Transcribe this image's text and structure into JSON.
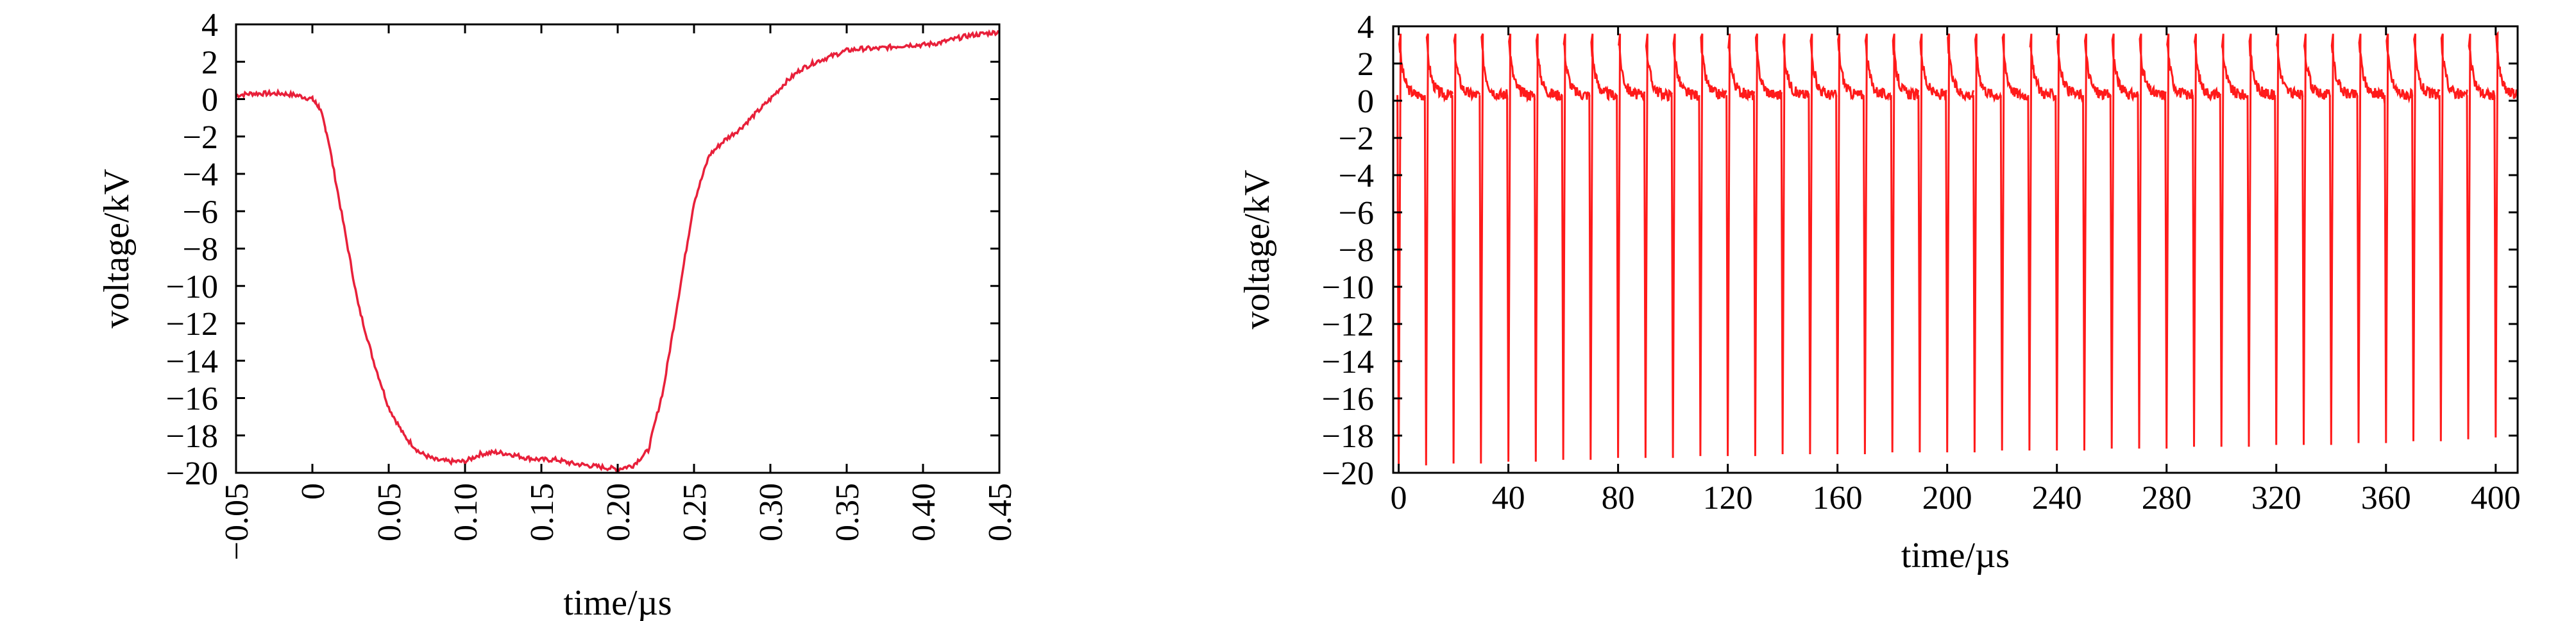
{
  "chart_data": [
    {
      "type": "line",
      "xlabel": "time/µs",
      "ylabel": "voltage/kV",
      "xlim": [
        -0.05,
        0.45
      ],
      "ylim": [
        -20,
        4
      ],
      "x_ticks": [
        -0.05,
        0,
        0.05,
        0.1,
        0.15,
        0.2,
        0.25,
        0.3,
        0.35,
        0.4,
        0.45
      ],
      "x_tick_labels": [
        "−0.05",
        "0",
        "0.05",
        "0.10",
        "0.15",
        "0.20",
        "0.25",
        "0.30",
        "0.35",
        "0.40",
        "0.45"
      ],
      "y_ticks": [
        4,
        2,
        0,
        -2,
        -4,
        -6,
        -8,
        -10,
        -12,
        -14,
        -16,
        -18,
        -20
      ],
      "y_tick_labels": [
        "4",
        "2",
        "0",
        "−2",
        "−4",
        "−6",
        "−8",
        "−10",
        "−12",
        "−14",
        "−16",
        "−18",
        "−20"
      ],
      "color": "#e8203a",
      "grid": false,
      "series": [
        {
          "x": [
            -0.05,
            -0.04,
            -0.03,
            -0.02,
            -0.01,
            0.0,
            0.005,
            0.01,
            0.02,
            0.03,
            0.04,
            0.05,
            0.06,
            0.07,
            0.08,
            0.09,
            0.1,
            0.11,
            0.12,
            0.13,
            0.14,
            0.15,
            0.16,
            0.17,
            0.18,
            0.19,
            0.2,
            0.21,
            0.22,
            0.23,
            0.24,
            0.25,
            0.26,
            0.27,
            0.28,
            0.29,
            0.3,
            0.31,
            0.32,
            0.33,
            0.34,
            0.35,
            0.36,
            0.37,
            0.38,
            0.39,
            0.4,
            0.41,
            0.42,
            0.43,
            0.44,
            0.45
          ],
          "y": [
            0.2,
            0.3,
            0.3,
            0.3,
            0.2,
            0.0,
            -0.5,
            -2.0,
            -6.5,
            -11.0,
            -14.0,
            -16.5,
            -18.0,
            -18.9,
            -19.3,
            -19.4,
            -19.4,
            -19.0,
            -18.9,
            -19.0,
            -19.2,
            -19.3,
            -19.3,
            -19.5,
            -19.6,
            -19.7,
            -19.8,
            -19.6,
            -18.8,
            -15.5,
            -10.5,
            -5.5,
            -3.0,
            -2.2,
            -1.6,
            -0.8,
            0.0,
            0.9,
            1.6,
            2.0,
            2.3,
            2.6,
            2.7,
            2.7,
            2.8,
            2.9,
            2.9,
            3.0,
            3.2,
            3.4,
            3.5,
            3.6
          ]
        }
      ]
    },
    {
      "type": "line",
      "xlabel": "time/µs",
      "ylabel": "voltage/kV",
      "xlim": [
        -2,
        408
      ],
      "ylim": [
        -20,
        4
      ],
      "x_ticks": [
        0,
        40,
        80,
        120,
        160,
        200,
        240,
        280,
        320,
        360,
        400
      ],
      "x_tick_labels": [
        "0",
        "40",
        "80",
        "120",
        "160",
        "200",
        "240",
        "280",
        "320",
        "360",
        "400"
      ],
      "y_ticks": [
        4,
        2,
        0,
        -2,
        -4,
        -6,
        -8,
        -10,
        -12,
        -14,
        -16,
        -18,
        -20
      ],
      "y_tick_labels": [
        "4",
        "2",
        "0",
        "−2",
        "−4",
        "−6",
        "−8",
        "−10",
        "−12",
        "−14",
        "−16",
        "−18",
        "−20"
      ],
      "color": "#ff1a1a",
      "grid": false,
      "pulse_period_us": 10,
      "pulse_times": [
        0,
        10,
        20,
        30,
        40,
        50,
        60,
        70,
        80,
        90,
        100,
        110,
        120,
        130,
        140,
        150,
        160,
        170,
        180,
        190,
        200,
        210,
        220,
        230,
        240,
        250,
        260,
        270,
        280,
        290,
        300,
        310,
        320,
        330,
        340,
        350,
        360,
        370,
        380,
        390,
        400
      ],
      "pulse_minima": [
        -19.6,
        -19.6,
        -19.5,
        -19.5,
        -19.4,
        -19.4,
        -19.3,
        -19.3,
        -19.2,
        -19.2,
        -19.2,
        -19.1,
        -19.1,
        -19.1,
        -19.0,
        -19.0,
        -19.0,
        -19.0,
        -18.9,
        -18.9,
        -18.9,
        -18.9,
        -18.8,
        -18.8,
        -18.8,
        -18.8,
        -18.7,
        -18.7,
        -18.7,
        -18.6,
        -18.6,
        -18.6,
        -18.5,
        -18.5,
        -18.5,
        -18.4,
        -18.4,
        -18.3,
        -18.3,
        -18.2,
        -18.1
      ],
      "pulse_peak": 3.6,
      "baseline": 0.3
    }
  ]
}
